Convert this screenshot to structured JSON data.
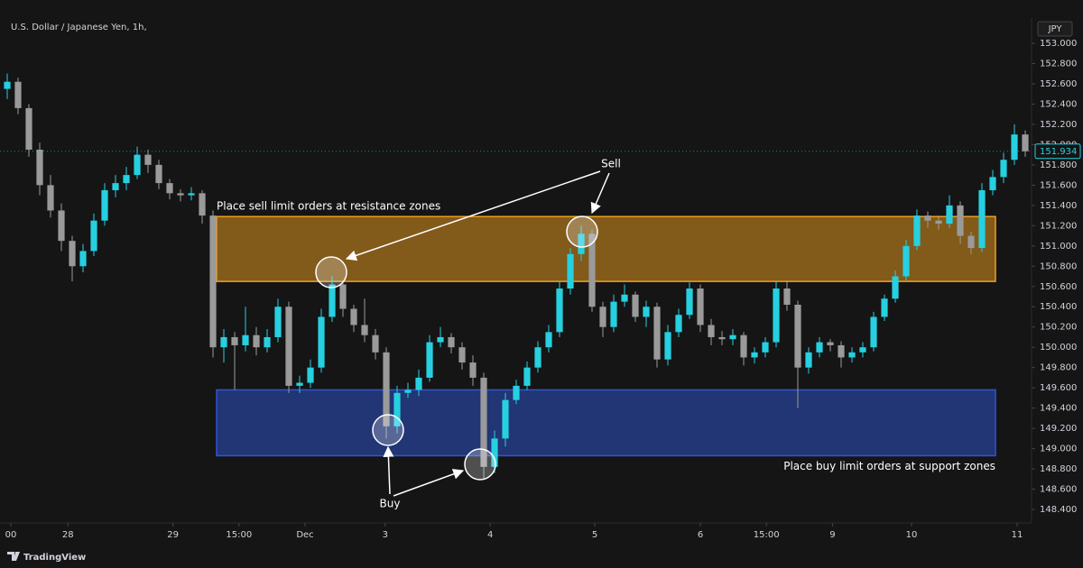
{
  "chart_data": {
    "type": "candlestick",
    "title": "U.S. Dollar / Japanese Yen, 1h,",
    "currency": "JPY",
    "brand": "TradingView",
    "up_color": "#26d0e0",
    "down_color": "#9a9a9a",
    "ylim": [
      148.267,
      153.249
    ],
    "yticks": [
      {
        "value": 148.4,
        "label": "148.400"
      },
      {
        "value": 148.6,
        "label": "148.600"
      },
      {
        "value": 148.8,
        "label": "148.800"
      },
      {
        "value": 149.0,
        "label": "149.000"
      },
      {
        "value": 149.2,
        "label": "149.200"
      },
      {
        "value": 149.4,
        "label": "149.400"
      },
      {
        "value": 149.6,
        "label": "149.600"
      },
      {
        "value": 149.8,
        "label": "149.800"
      },
      {
        "value": 150.0,
        "label": "150.000"
      },
      {
        "value": 150.2,
        "label": "150.200"
      },
      {
        "value": 150.4,
        "label": "150.400"
      },
      {
        "value": 150.6,
        "label": "150.600"
      },
      {
        "value": 150.8,
        "label": "150.800"
      },
      {
        "value": 151.0,
        "label": "151.000"
      },
      {
        "value": 151.2,
        "label": "151.200"
      },
      {
        "value": 151.4,
        "label": "151.400"
      },
      {
        "value": 151.6,
        "label": "151.600"
      },
      {
        "value": 151.8,
        "label": "151.800"
      },
      {
        "value": 152.0,
        "label": "152.000"
      },
      {
        "value": 152.2,
        "label": "152.200"
      },
      {
        "value": 152.4,
        "label": "152.400"
      },
      {
        "value": 152.6,
        "label": "152.600"
      },
      {
        "value": 152.8,
        "label": "152.800"
      },
      {
        "value": 153.0,
        "label": "153.000"
      }
    ],
    "xlim": [
      -0.667,
      94.583
    ],
    "xticks": [
      {
        "value": 0.33,
        "label": "00"
      },
      {
        "value": 5.6,
        "label": "28"
      },
      {
        "value": 15.3,
        "label": "29"
      },
      {
        "value": 21.4,
        "label": "15:00"
      },
      {
        "value": 27.5,
        "label": "Dec"
      },
      {
        "value": 34.9,
        "label": "3"
      },
      {
        "value": 44.6,
        "label": "4"
      },
      {
        "value": 54.25,
        "label": "5"
      },
      {
        "value": 64,
        "label": "6"
      },
      {
        "value": 70.1,
        "label": "15:00"
      },
      {
        "value": 76.2,
        "label": "9"
      },
      {
        "value": 83.5,
        "label": "10"
      },
      {
        "value": 93.25,
        "label": "11"
      }
    ],
    "grid": false,
    "last_price": 151.934,
    "ohlc": [
      [
        152.55,
        152.7,
        152.45,
        152.62
      ],
      [
        152.62,
        152.66,
        152.3,
        152.36
      ],
      [
        152.36,
        152.4,
        151.88,
        151.95
      ],
      [
        151.95,
        152.02,
        151.5,
        151.6
      ],
      [
        151.6,
        151.7,
        151.28,
        151.35
      ],
      [
        151.35,
        151.42,
        150.95,
        151.05
      ],
      [
        151.05,
        151.1,
        150.65,
        150.8
      ],
      [
        150.8,
        151.02,
        150.74,
        150.95
      ],
      [
        150.95,
        151.32,
        150.9,
        151.25
      ],
      [
        151.25,
        151.62,
        151.2,
        151.55
      ],
      [
        151.55,
        151.7,
        151.48,
        151.62
      ],
      [
        151.62,
        151.78,
        151.55,
        151.7
      ],
      [
        151.7,
        151.98,
        151.66,
        151.9
      ],
      [
        151.9,
        151.95,
        151.72,
        151.8
      ],
      [
        151.8,
        151.85,
        151.56,
        151.62
      ],
      [
        151.62,
        151.66,
        151.46,
        151.52
      ],
      [
        151.52,
        151.56,
        151.44,
        151.5
      ],
      [
        151.5,
        151.58,
        151.45,
        151.52
      ],
      [
        151.52,
        151.55,
        151.22,
        151.3
      ],
      [
        151.3,
        151.35,
        149.9,
        150.0
      ],
      [
        150.0,
        150.18,
        149.85,
        150.1
      ],
      [
        150.1,
        150.15,
        149.58,
        150.02
      ],
      [
        150.02,
        150.4,
        149.96,
        150.12
      ],
      [
        150.12,
        150.2,
        149.92,
        150.0
      ],
      [
        150.0,
        150.18,
        149.95,
        150.1
      ],
      [
        150.1,
        150.48,
        150.05,
        150.4
      ],
      [
        150.4,
        150.45,
        149.55,
        149.62
      ],
      [
        149.62,
        149.72,
        149.55,
        149.65
      ],
      [
        149.65,
        149.88,
        149.6,
        149.8
      ],
      [
        149.8,
        150.38,
        149.75,
        150.3
      ],
      [
        150.3,
        150.7,
        150.25,
        150.62
      ],
      [
        150.62,
        150.66,
        150.3,
        150.38
      ],
      [
        150.38,
        150.42,
        150.15,
        150.22
      ],
      [
        150.22,
        150.48,
        150.05,
        150.12
      ],
      [
        150.12,
        150.18,
        149.88,
        149.95
      ],
      [
        149.95,
        150.0,
        149.1,
        149.22
      ],
      [
        149.22,
        149.62,
        149.15,
        149.55
      ],
      [
        149.55,
        149.65,
        149.5,
        149.58
      ],
      [
        149.58,
        149.78,
        149.52,
        149.7
      ],
      [
        149.7,
        150.12,
        149.66,
        150.05
      ],
      [
        150.05,
        150.2,
        150.0,
        150.1
      ],
      [
        150.1,
        150.14,
        149.94,
        150.0
      ],
      [
        150.0,
        150.05,
        149.78,
        149.85
      ],
      [
        149.85,
        149.92,
        149.62,
        149.7
      ],
      [
        149.7,
        149.75,
        148.7,
        148.82
      ],
      [
        148.82,
        149.18,
        148.76,
        149.1
      ],
      [
        149.1,
        149.55,
        149.02,
        149.48
      ],
      [
        149.48,
        149.68,
        149.44,
        149.62
      ],
      [
        149.62,
        149.86,
        149.58,
        149.8
      ],
      [
        149.8,
        150.06,
        149.75,
        150.0
      ],
      [
        150.0,
        150.22,
        149.95,
        150.15
      ],
      [
        150.15,
        150.65,
        150.1,
        150.58
      ],
      [
        150.58,
        150.98,
        150.52,
        150.92
      ],
      [
        150.92,
        151.2,
        150.85,
        151.12
      ],
      [
        151.12,
        151.16,
        150.35,
        150.4
      ],
      [
        150.4,
        150.45,
        150.1,
        150.2
      ],
      [
        150.2,
        150.52,
        150.15,
        150.45
      ],
      [
        150.45,
        150.62,
        150.4,
        150.52
      ],
      [
        150.52,
        150.55,
        150.25,
        150.3
      ],
      [
        150.3,
        150.46,
        150.2,
        150.4
      ],
      [
        150.4,
        150.44,
        149.8,
        149.88
      ],
      [
        149.88,
        150.22,
        149.82,
        150.15
      ],
      [
        150.15,
        150.38,
        150.1,
        150.32
      ],
      [
        150.32,
        150.64,
        150.28,
        150.58
      ],
      [
        150.58,
        150.62,
        150.15,
        150.22
      ],
      [
        150.22,
        150.28,
        150.02,
        150.1
      ],
      [
        150.1,
        150.16,
        150.02,
        150.08
      ],
      [
        150.08,
        150.18,
        150.02,
        150.12
      ],
      [
        150.12,
        150.15,
        149.82,
        149.9
      ],
      [
        149.9,
        150.0,
        149.84,
        149.95
      ],
      [
        149.95,
        150.1,
        149.9,
        150.05
      ],
      [
        150.05,
        150.65,
        150.0,
        150.58
      ],
      [
        150.58,
        150.66,
        150.36,
        150.42
      ],
      [
        150.42,
        150.46,
        149.4,
        149.8
      ],
      [
        149.8,
        150.0,
        149.74,
        149.95
      ],
      [
        149.95,
        150.1,
        149.9,
        150.05
      ],
      [
        150.05,
        150.08,
        149.96,
        150.02
      ],
      [
        150.02,
        150.06,
        149.8,
        149.9
      ],
      [
        149.9,
        150.0,
        149.85,
        149.95
      ],
      [
        149.95,
        150.05,
        149.9,
        150.0
      ],
      [
        150.0,
        150.35,
        149.96,
        150.3
      ],
      [
        150.3,
        150.52,
        150.26,
        150.48
      ],
      [
        150.48,
        150.76,
        150.44,
        150.7
      ],
      [
        150.7,
        151.06,
        150.66,
        151.0
      ],
      [
        151.0,
        151.36,
        150.96,
        151.3
      ],
      [
        151.3,
        151.34,
        151.18,
        151.25
      ],
      [
        151.25,
        151.3,
        151.16,
        151.22
      ],
      [
        151.22,
        151.5,
        151.18,
        151.4
      ],
      [
        151.4,
        151.44,
        151.02,
        151.1
      ],
      [
        151.1,
        151.14,
        150.92,
        150.98
      ],
      [
        150.98,
        151.62,
        150.94,
        151.55
      ],
      [
        151.55,
        151.75,
        151.5,
        151.68
      ],
      [
        151.68,
        151.92,
        151.62,
        151.85
      ],
      [
        151.85,
        152.2,
        151.8,
        152.1
      ],
      [
        152.1,
        152.14,
        151.88,
        151.934
      ]
    ],
    "zones": [
      {
        "label": "Place sell limit orders at resistance zones",
        "top": 151.29,
        "bottom": 150.65,
        "color": "#f0a020"
      },
      {
        "label": "Place buy limit orders at support zones",
        "top": 149.58,
        "bottom": 148.93,
        "color": "#2f55d4"
      }
    ],
    "annotations": [
      "Sell",
      "Buy"
    ]
  }
}
